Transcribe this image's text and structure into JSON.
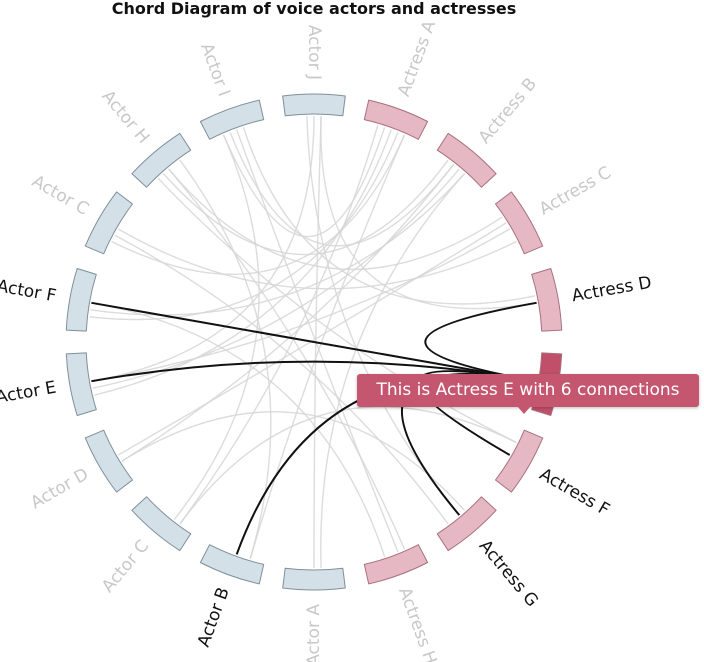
{
  "diagram": {
    "title": "Chord Diagram of voice actors and actresses",
    "active": "Actress E",
    "tooltip": "This is Actress E with 6 connections",
    "colors": {
      "actor_fill": "#d4e0e8",
      "actor_stroke": "#7f8f9a",
      "actress_fill": "#e6b8c4",
      "actress_stroke": "#a8707e",
      "active_fill": "#c0506a",
      "dim_label": "#c8c8c8",
      "active_label": "#111111",
      "chord_dim": "#d6d6d6",
      "chord_active": "#111111",
      "tooltip_bg": "#c5566f"
    },
    "nodes": [
      {
        "name": "Actress A",
        "group": "actress"
      },
      {
        "name": "Actress B",
        "group": "actress"
      },
      {
        "name": "Actress C",
        "group": "actress"
      },
      {
        "name": "Actress D",
        "group": "actress"
      },
      {
        "name": "Actress E",
        "group": "actress"
      },
      {
        "name": "Actress F",
        "group": "actress"
      },
      {
        "name": "Actress G",
        "group": "actress"
      },
      {
        "name": "Actress H",
        "group": "actress"
      },
      {
        "name": "Actor A",
        "group": "actor"
      },
      {
        "name": "Actor B",
        "group": "actor"
      },
      {
        "name": "Actor C",
        "group": "actor"
      },
      {
        "name": "Actor D",
        "group": "actor"
      },
      {
        "name": "Actor E",
        "group": "actor"
      },
      {
        "name": "Actor F",
        "group": "actor"
      },
      {
        "name": "Actor C",
        "group": "actor"
      },
      {
        "name": "Actor H",
        "group": "actor"
      },
      {
        "name": "Actor I",
        "group": "actor"
      },
      {
        "name": "Actor J",
        "group": "actor"
      }
    ],
    "links": [
      [
        4,
        3
      ],
      [
        4,
        5
      ],
      [
        4,
        6
      ],
      [
        4,
        9
      ],
      [
        4,
        12
      ],
      [
        4,
        13
      ],
      [
        0,
        10
      ],
      [
        0,
        14
      ],
      [
        0,
        9
      ],
      [
        0,
        16
      ],
      [
        1,
        11
      ],
      [
        1,
        15
      ],
      [
        1,
        8
      ],
      [
        2,
        14
      ],
      [
        2,
        12
      ],
      [
        3,
        16
      ],
      [
        3,
        17
      ],
      [
        5,
        15
      ],
      [
        5,
        10
      ],
      [
        6,
        17
      ],
      [
        6,
        11
      ],
      [
        7,
        15
      ],
      [
        7,
        13
      ],
      [
        7,
        16
      ],
      [
        8,
        17
      ],
      [
        9,
        15
      ],
      [
        10,
        16
      ],
      [
        11,
        2
      ],
      [
        12,
        1
      ],
      [
        13,
        0
      ],
      [
        14,
        6
      ],
      [
        15,
        2
      ],
      [
        16,
        1
      ],
      [
        17,
        12
      ],
      [
        0,
        12
      ],
      [
        1,
        13
      ]
    ]
  }
}
